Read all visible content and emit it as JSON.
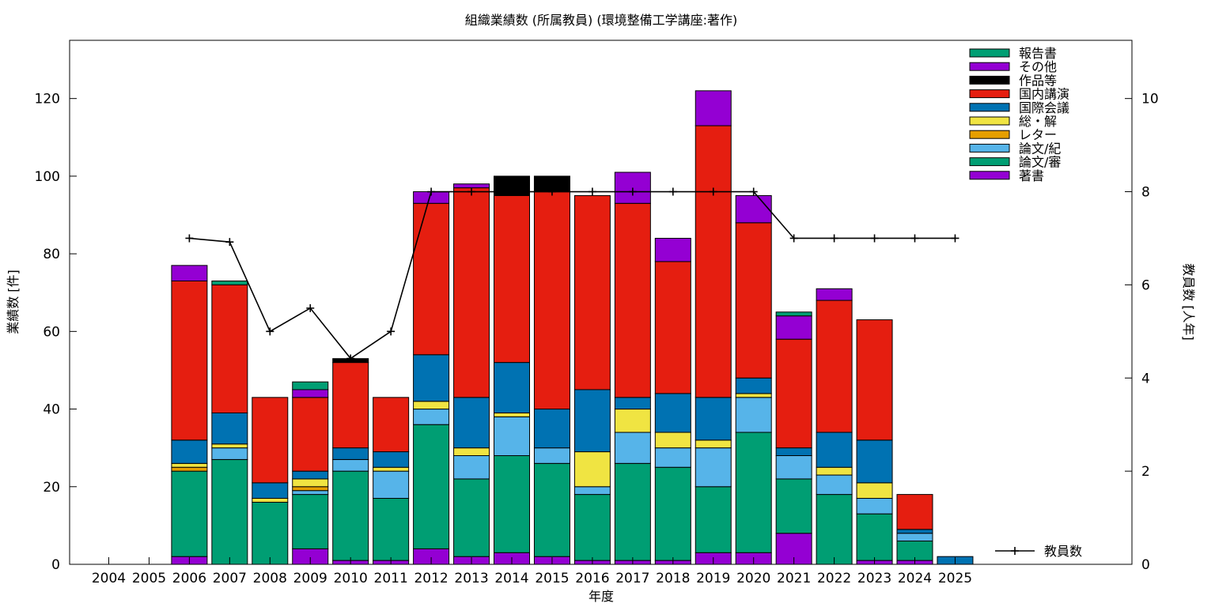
{
  "chart_data": {
    "type": "bar",
    "stacked": true,
    "title": "組織業績数 (所属教員) (環境整備工学講座:著作)",
    "xlabel": "年度",
    "ylabel": "業績数 [件]",
    "y2label": "教員数 [人年]",
    "categories": [
      "2004",
      "2005",
      "2006",
      "2007",
      "2008",
      "2009",
      "2010",
      "2011",
      "2012",
      "2013",
      "2014",
      "2015",
      "2016",
      "2017",
      "2018",
      "2019",
      "2020",
      "2021",
      "2022",
      "2023",
      "2024",
      "2025"
    ],
    "ylim": [
      0,
      135
    ],
    "y2lim": [
      0,
      11.25
    ],
    "yticks": [
      0,
      20,
      40,
      60,
      80,
      100,
      120
    ],
    "y2ticks": [
      0,
      2,
      4,
      6,
      8,
      10
    ],
    "legend_position": "top-right",
    "grid": false,
    "series": [
      {
        "name": "著書",
        "color": "#9400d3",
        "values": [
          0,
          0,
          2,
          0,
          0,
          4,
          1,
          1,
          4,
          2,
          3,
          2,
          1,
          1,
          1,
          3,
          3,
          8,
          0,
          1,
          1,
          0
        ]
      },
      {
        "name": "論文/審",
        "color": "#009e73",
        "values": [
          0,
          0,
          22,
          27,
          16,
          14,
          23,
          16,
          32,
          20,
          25,
          24,
          17,
          25,
          24,
          17,
          31,
          14,
          18,
          12,
          5,
          0
        ]
      },
      {
        "name": "論文/紀",
        "color": "#56b4e9",
        "values": [
          0,
          0,
          0,
          3,
          0,
          1,
          3,
          7,
          4,
          6,
          10,
          4,
          2,
          8,
          5,
          10,
          9,
          6,
          5,
          4,
          2,
          0
        ]
      },
      {
        "name": "レター",
        "color": "#e69f00",
        "values": [
          0,
          0,
          1,
          0,
          0,
          1,
          0,
          0,
          0,
          0,
          0,
          0,
          0,
          0,
          0,
          0,
          0,
          0,
          0,
          0,
          0,
          0
        ]
      },
      {
        "name": "総・解",
        "color": "#f0e442",
        "values": [
          0,
          0,
          1,
          1,
          1,
          2,
          0,
          1,
          2,
          2,
          1,
          0,
          9,
          6,
          4,
          2,
          1,
          0,
          2,
          4,
          0,
          0
        ]
      },
      {
        "name": "国際会議",
        "color": "#0072b2",
        "values": [
          0,
          0,
          6,
          8,
          4,
          2,
          3,
          4,
          12,
          13,
          13,
          10,
          16,
          3,
          10,
          11,
          4,
          2,
          9,
          11,
          1,
          2
        ]
      },
      {
        "name": "国内講演",
        "color": "#e51e10",
        "values": [
          0,
          0,
          41,
          33,
          22,
          19,
          22,
          14,
          39,
          54,
          43,
          56,
          50,
          50,
          34,
          70,
          40,
          28,
          34,
          31,
          9,
          0
        ]
      },
      {
        "name": "作品等",
        "color": "#000000",
        "values": [
          0,
          0,
          0,
          0,
          0,
          0,
          1,
          0,
          0,
          0,
          5,
          4,
          0,
          0,
          0,
          0,
          0,
          0,
          0,
          0,
          0,
          0
        ]
      },
      {
        "name": "その他",
        "color": "#9400d3",
        "values": [
          0,
          0,
          4,
          0,
          0,
          2,
          0,
          0,
          3,
          1,
          0,
          0,
          0,
          8,
          6,
          9,
          7,
          6,
          3,
          0,
          0,
          0
        ]
      },
      {
        "name": "報告書",
        "color": "#009e73",
        "values": [
          0,
          0,
          0,
          1,
          0,
          2,
          0,
          0,
          0,
          0,
          0,
          0,
          0,
          0,
          0,
          0,
          0,
          1,
          0,
          0,
          0,
          0
        ]
      }
    ],
    "line_series": {
      "name": "教員数",
      "color": "#000000",
      "axis": "y2",
      "values": [
        null,
        null,
        7,
        6.92,
        5,
        5.5,
        4.42,
        5,
        8,
        8,
        8,
        8,
        8,
        8,
        8,
        8,
        8,
        7,
        7,
        7,
        7,
        7
      ]
    }
  }
}
